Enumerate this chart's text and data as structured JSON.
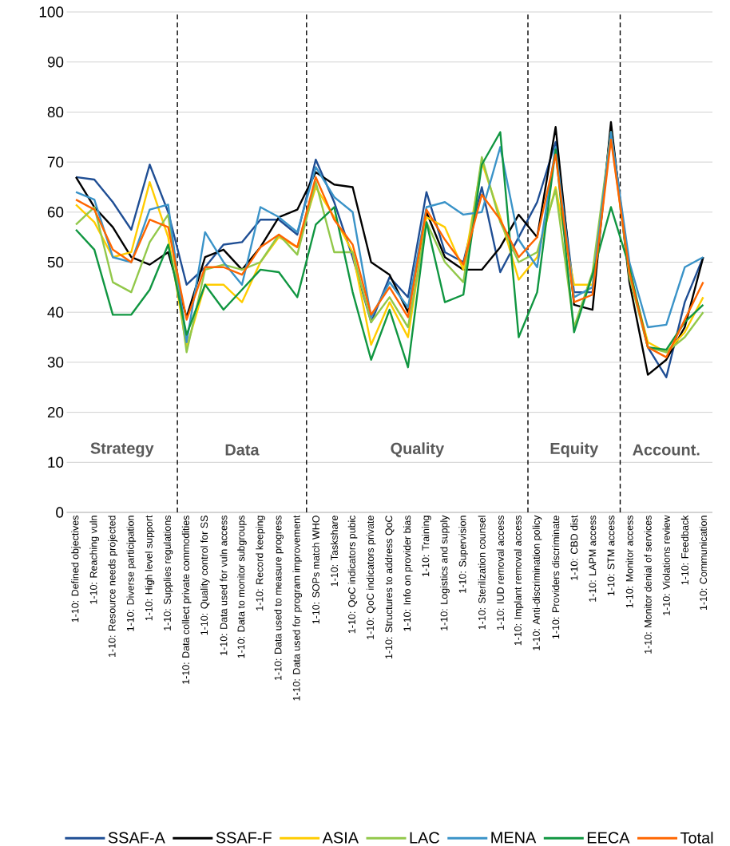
{
  "chart_data": {
    "type": "line",
    "categories": [
      "1-10: Defined objectives",
      "1-10: Reaching vuln",
      "1-10: Resource needs projected",
      "1-10: Diverse participation",
      "1-10: High level support",
      "1-10: Supplies regulations",
      "1-10: Data collect private commodities",
      "1-10: Quality control for SS",
      "1-10: Data used for vuln access",
      "1-10: Data to monitor subgroups",
      "1-10: Record keeping",
      "1-10: Data used to measure progress",
      "1-10: Data used for program improvement",
      "1-10: SOPs match WHO",
      "1-10: Taskshare",
      "1-10: QoC indicators pubic",
      "1-10: QoC indicators private",
      "1-10: Structures to address QoC",
      "1-10: Info on provider bias",
      "1-10: Training",
      "1-10: Logistics and supply",
      "1-10: Supervision",
      "1-10: Sterilization counsel",
      "1-10: IUD removal access",
      "1-10: Implant removal access",
      "1-10: Anti-discrimination policy",
      "1-10: Providers discriminate",
      "1-10: CBD dist",
      "1-10: LAPM access",
      "1-10: STM access",
      "1-10: Monitor access",
      "1-10: Monitor denial of services",
      "1-10: Violations review",
      "1-10: Feedback",
      "1-10: Communication"
    ],
    "series": [
      {
        "name": "SSAF-A",
        "color": "#1f4e94",
        "values": [
          67,
          66.5,
          62,
          56.5,
          69.5,
          60,
          45.5,
          49,
          53.5,
          54,
          58.5,
          58.5,
          55.5,
          70.5,
          62,
          51,
          38,
          47,
          43,
          64,
          52,
          50,
          65,
          48,
          55,
          62,
          74,
          44,
          44,
          77,
          48,
          33,
          27,
          42,
          51
        ]
      },
      {
        "name": "SSAF-F",
        "color": "#000000",
        "values": [
          67,
          61,
          57,
          51,
          49.5,
          52,
          39,
          51,
          52.5,
          48.5,
          53,
          59,
          60.5,
          68,
          65.5,
          65,
          50,
          47.5,
          40,
          60,
          51,
          48.5,
          48.5,
          53,
          59.5,
          55,
          77,
          41.5,
          40.5,
          78,
          46,
          27.5,
          30.5,
          37,
          51
        ]
      },
      {
        "name": "ASIA",
        "color": "#ffcc00",
        "values": [
          61.5,
          58,
          51,
          52,
          66,
          55,
          33,
          45.5,
          45.5,
          42,
          50,
          55,
          53,
          65,
          59,
          52,
          33.5,
          42,
          35,
          59,
          57,
          48.5,
          70,
          59,
          46.5,
          51,
          65,
          45.5,
          45.5,
          75,
          48,
          34,
          32,
          36,
          43
        ]
      },
      {
        "name": "LAC",
        "color": "#92c84a",
        "values": [
          57.5,
          61,
          46,
          44,
          54,
          59.5,
          32,
          48.5,
          49.5,
          48.5,
          50,
          55.5,
          51.5,
          66,
          52,
          52,
          38,
          43,
          37,
          58,
          50,
          46,
          71,
          58,
          50,
          52,
          64.5,
          37,
          48,
          76,
          47,
          33,
          32,
          35,
          40
        ]
      },
      {
        "name": "MENA",
        "color": "#3a93c8",
        "values": [
          64,
          62.5,
          51,
          50,
          60.5,
          61.5,
          34,
          56,
          50,
          45.5,
          61,
          59,
          56,
          69,
          63,
          60,
          39,
          46,
          41,
          61,
          62,
          59.5,
          60,
          73,
          54.5,
          49,
          73,
          43,
          45,
          76,
          50,
          37,
          37.5,
          49,
          51
        ]
      },
      {
        "name": "EECA",
        "color": "#109641",
        "values": [
          56.5,
          52.5,
          39.5,
          39.5,
          44.5,
          53.5,
          35.5,
          45.5,
          40.5,
          44.5,
          48.5,
          48,
          43,
          57.5,
          61,
          44,
          30.5,
          40.5,
          29,
          58,
          42,
          43.5,
          69.5,
          76,
          35,
          44,
          72.5,
          36,
          47.5,
          61,
          49,
          33,
          32.5,
          38,
          41.5
        ]
      },
      {
        "name": "Total",
        "color": "#ff6600",
        "values": [
          62.5,
          60.5,
          52.5,
          50,
          58.5,
          57,
          38.5,
          49,
          49,
          47.5,
          53,
          55.5,
          53,
          67,
          58.5,
          53.5,
          39.5,
          45,
          39,
          60.5,
          54.5,
          49.5,
          63.5,
          58.5,
          51,
          55,
          71.5,
          42,
          43.5,
          74.5,
          48,
          33,
          31,
          38.5,
          46
        ]
      }
    ],
    "ylim": [
      0,
      100
    ],
    "yticks": [
      0,
      10,
      20,
      30,
      40,
      50,
      60,
      70,
      80,
      90,
      100
    ],
    "grid": "y",
    "legend": "bottom",
    "marker": "none",
    "line_style": "solid",
    "annotations": [
      "Strategy",
      "Data",
      "Quality",
      "Equity",
      "Account."
    ]
  }
}
